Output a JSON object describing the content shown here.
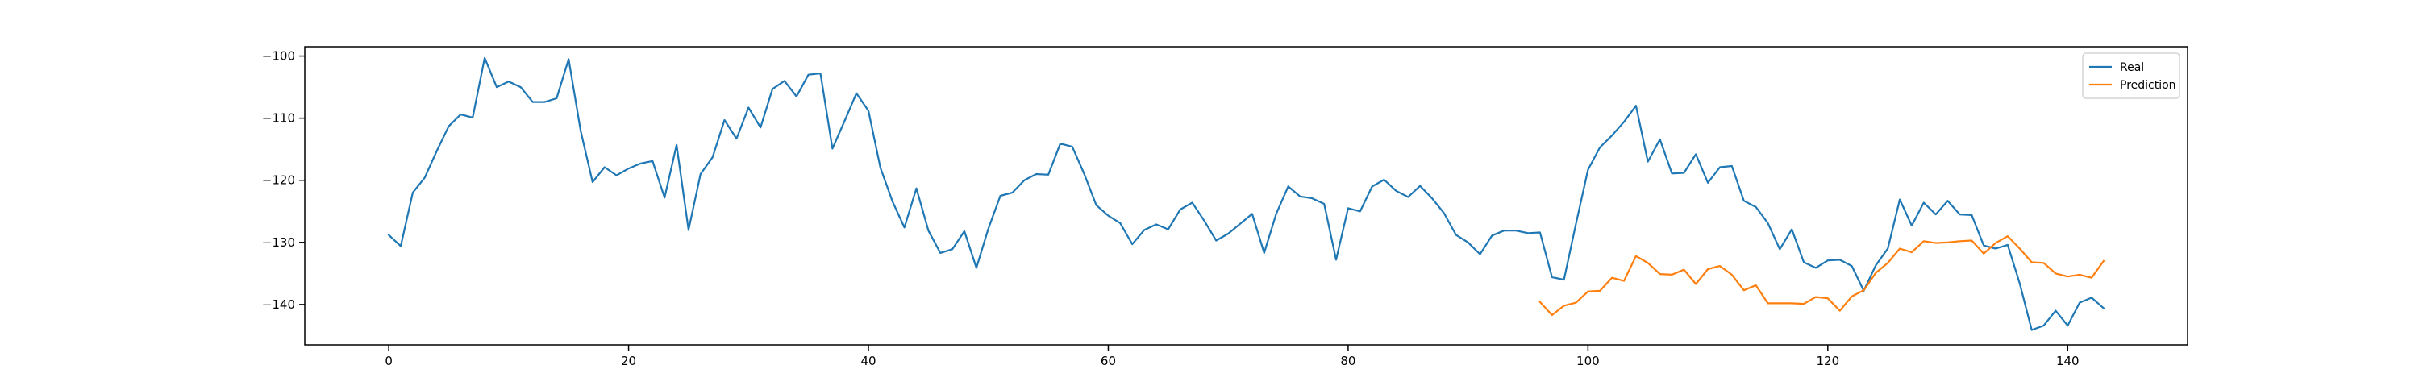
{
  "chart_data": {
    "type": "line",
    "title": "",
    "xlabel": "",
    "ylabel": "",
    "xlim": [
      -7,
      150
    ],
    "ylim": [
      -146.5,
      -98.5
    ],
    "x_ticks": [
      0,
      20,
      40,
      60,
      80,
      100,
      120,
      140
    ],
    "y_ticks": [
      -100,
      -110,
      -120,
      -130,
      -140
    ],
    "grid": false,
    "legend_position": "top-right",
    "series": [
      {
        "name": "Real",
        "color": "#1f77b4",
        "x_start": 0,
        "values": [
          -128.8,
          -130.6,
          -122.0,
          -119.6,
          -115.3,
          -111.3,
          -109.4,
          -109.9,
          -100.3,
          -105.0,
          -104.1,
          -105.0,
          -107.4,
          -107.4,
          -106.8,
          -100.5,
          -112.0,
          -120.3,
          -117.9,
          -119.2,
          -118.1,
          -117.3,
          -116.9,
          -122.8,
          -114.3,
          -128.0,
          -119.0,
          -116.3,
          -110.3,
          -113.3,
          -108.3,
          -111.5,
          -105.3,
          -104.0,
          -106.5,
          -103.0,
          -102.8,
          -114.9,
          -110.5,
          -106.0,
          -108.8,
          -118.0,
          -123.4,
          -127.6,
          -121.3,
          -128.1,
          -131.7,
          -131.1,
          -128.2,
          -134.1,
          -127.8,
          -122.5,
          -122.0,
          -120.0,
          -119.0,
          -119.1,
          -114.1,
          -114.6,
          -119.0,
          -124.0,
          -125.7,
          -126.9,
          -130.3,
          -128.0,
          -127.1,
          -127.9,
          -124.7,
          -123.6,
          -126.5,
          -129.7,
          -128.6,
          -127.0,
          -125.4,
          -131.7,
          -125.4,
          -121.0,
          -122.6,
          -122.9,
          -123.8,
          -132.8,
          -124.5,
          -125.0,
          -121.0,
          -119.9,
          -121.7,
          -122.7,
          -120.9,
          -122.9,
          -125.3,
          -128.8,
          -130.0,
          -131.9,
          -128.9,
          -128.1,
          -128.1,
          -128.5,
          -128.4,
          -135.6,
          -136.0,
          -127.0,
          -118.3,
          -114.7,
          -112.8,
          -110.6,
          -108.0,
          -117.0,
          -113.4,
          -118.9,
          -118.8,
          -115.8,
          -120.4,
          -117.9,
          -117.7,
          -123.3,
          -124.3,
          -126.9,
          -131.1,
          -127.9,
          -133.2,
          -134.1,
          -132.9,
          -132.8,
          -133.8,
          -137.8,
          -133.7,
          -131.0,
          -123.1,
          -127.3,
          -123.6,
          -125.5,
          -123.3,
          -125.5,
          -125.6,
          -130.5,
          -131.0,
          -130.4,
          -136.6,
          -144.1,
          -143.4,
          -141.0,
          -143.4,
          -139.7,
          -138.9,
          -140.6
        ]
      },
      {
        "name": "Prediction",
        "color": "#ff7f0e",
        "x_start": 96,
        "values": [
          -139.6,
          -141.7,
          -140.2,
          -139.7,
          -137.9,
          -137.8,
          -135.7,
          -136.2,
          -132.2,
          -133.3,
          -135.1,
          -135.2,
          -134.4,
          -136.7,
          -134.3,
          -133.8,
          -135.2,
          -137.7,
          -136.9,
          -139.8,
          -139.8,
          -139.8,
          -139.9,
          -138.8,
          -139.0,
          -141.0,
          -138.7,
          -137.7,
          -134.9,
          -133.3,
          -131.0,
          -131.6,
          -129.8,
          -130.1,
          -130.0,
          -129.8,
          -129.7,
          -131.8,
          -130.1,
          -129.0,
          -131.0,
          -133.2,
          -133.3,
          -135.0,
          -135.5,
          -135.2,
          -135.7,
          -133.0
        ]
      }
    ]
  }
}
